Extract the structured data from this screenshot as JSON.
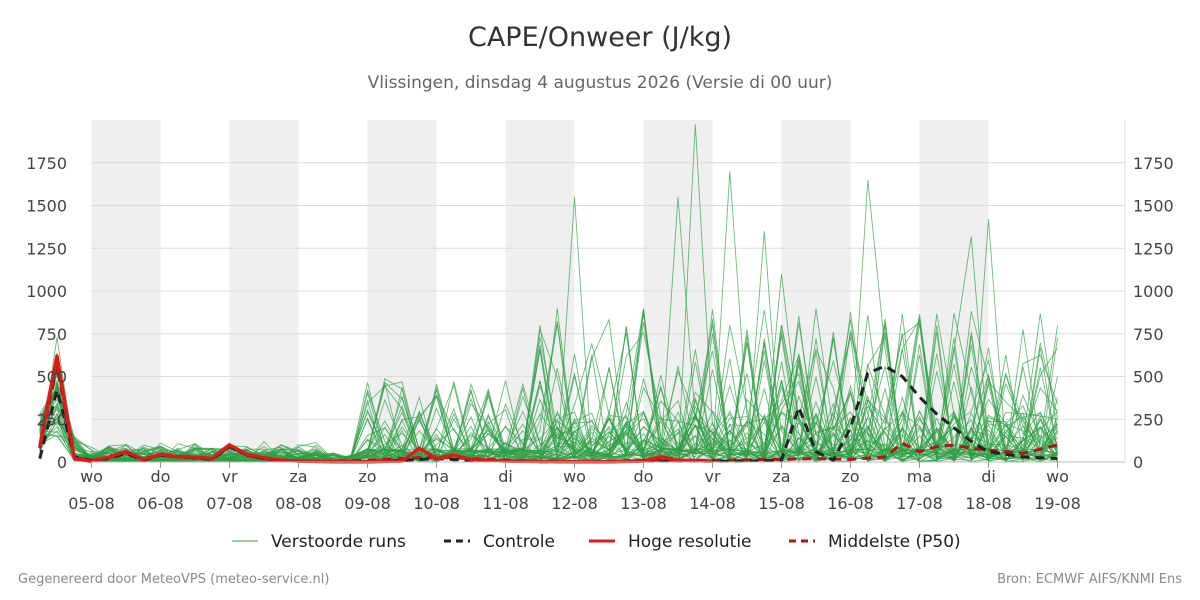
{
  "header": {
    "title": "CAPE/Onweer (J/kg)",
    "subtitle": "Vlissingen, dinsdag  4 augustus 2026 (Versie di 00 uur)"
  },
  "footer": {
    "left": "Gegenereerd door MeteoVPS (meteo-service.nl)",
    "right": "Bron: ECMWF AIFS/KNMI Ens"
  },
  "chart_data": {
    "type": "line",
    "title": "CAPE/Onweer (J/kg)",
    "ylim": [
      0,
      2000
    ],
    "yticks": [
      0,
      250,
      500,
      750,
      1000,
      1250,
      1500,
      1750
    ],
    "xlim": [
      0,
      15
    ],
    "grid": true,
    "legend_position": "bottom",
    "x_ticks": [
      {
        "x": 1,
        "day": "wo",
        "date": "05-08"
      },
      {
        "x": 2,
        "day": "do",
        "date": "06-08"
      },
      {
        "x": 3,
        "day": "vr",
        "date": "07-08"
      },
      {
        "x": 4,
        "day": "za",
        "date": "08-08"
      },
      {
        "x": 5,
        "day": "zo",
        "date": "09-08"
      },
      {
        "x": 6,
        "day": "ma",
        "date": "10-08"
      },
      {
        "x": 7,
        "day": "di",
        "date": "11-08"
      },
      {
        "x": 8,
        "day": "wo",
        "date": "12-08"
      },
      {
        "x": 9,
        "day": "do",
        "date": "13-08"
      },
      {
        "x": 10,
        "day": "vr",
        "date": "14-08"
      },
      {
        "x": 11,
        "day": "za",
        "date": "15-08"
      },
      {
        "x": 12,
        "day": "zo",
        "date": "16-08"
      },
      {
        "x": 13,
        "day": "ma",
        "date": "17-08"
      },
      {
        "x": 14,
        "day": "di",
        "date": "18-08"
      },
      {
        "x": 15,
        "day": "wo",
        "date": "19-08"
      }
    ],
    "shaded_bands": [
      [
        1,
        2
      ],
      [
        3,
        4
      ],
      [
        5,
        6
      ],
      [
        7,
        8
      ],
      [
        9,
        10
      ],
      [
        11,
        12
      ],
      [
        13,
        14
      ]
    ],
    "series": [
      {
        "name": "Controle",
        "color": "#222222",
        "style": "dashed",
        "x": [
          0.25,
          0.5,
          0.75,
          1.0,
          1.25,
          1.5,
          1.75,
          2.0,
          2.25,
          2.5,
          2.75,
          3.0,
          3.25,
          3.5,
          3.75,
          4.0,
          4.5,
          5.0,
          5.5,
          6.0,
          6.5,
          7.0,
          7.5,
          8.0,
          8.5,
          9.0,
          9.5,
          10.0,
          10.5,
          11.0,
          11.25,
          11.5,
          11.75,
          12.0,
          12.25,
          12.5,
          12.75,
          13.0,
          13.25,
          13.5,
          13.75,
          14.0,
          14.5,
          15.0
        ],
        "y": [
          20,
          420,
          30,
          10,
          20,
          50,
          10,
          40,
          30,
          25,
          15,
          90,
          40,
          20,
          10,
          5,
          2,
          2,
          10,
          20,
          10,
          5,
          2,
          2,
          2,
          5,
          5,
          5,
          5,
          10,
          320,
          60,
          10,
          200,
          520,
          560,
          500,
          380,
          280,
          200,
          120,
          60,
          30,
          20
        ]
      },
      {
        "name": "Hoge resolutie",
        "color": "#e01818",
        "style": "solid",
        "x": [
          0.25,
          0.5,
          0.75,
          1.0,
          1.25,
          1.5,
          1.75,
          2.0,
          2.25,
          2.5,
          2.75,
          3.0,
          3.25,
          3.5,
          3.75,
          4.0,
          4.5,
          5.0,
          5.5,
          5.75,
          6.0,
          6.25,
          6.5,
          7.0,
          7.5,
          8.0,
          8.5,
          9.0,
          9.25,
          9.5,
          10.0
        ],
        "y": [
          90,
          620,
          20,
          5,
          30,
          60,
          15,
          45,
          30,
          30,
          20,
          100,
          45,
          25,
          10,
          5,
          2,
          2,
          5,
          80,
          20,
          40,
          15,
          5,
          3,
          2,
          2,
          5,
          30,
          10,
          5
        ]
      },
      {
        "name": "Middelste (P50)",
        "color": "#aa1a1a",
        "style": "dashed",
        "x": [
          0.25,
          0.5,
          0.75,
          1.0,
          1.25,
          1.5,
          1.75,
          2.0,
          2.25,
          2.5,
          2.75,
          3.0,
          3.25,
          3.5,
          3.75,
          4.0,
          4.5,
          5.0,
          5.5,
          6.0,
          6.5,
          7.0,
          7.5,
          8.0,
          8.5,
          9.0,
          9.5,
          10.0,
          10.5,
          11.0,
          11.5,
          12.0,
          12.5,
          12.75,
          13.0,
          13.25,
          13.5,
          13.75,
          14.0,
          14.5,
          15.0
        ],
        "y": [
          80,
          560,
          25,
          10,
          25,
          55,
          12,
          40,
          28,
          25,
          18,
          90,
          40,
          20,
          10,
          5,
          5,
          10,
          20,
          30,
          20,
          10,
          5,
          5,
          5,
          10,
          10,
          10,
          12,
          15,
          20,
          15,
          30,
          110,
          60,
          90,
          100,
          80,
          70,
          50,
          100
        ]
      }
    ],
    "ensemble": {
      "name": "Verstoorde runs",
      "color": "#2e9e44",
      "peaks": [
        {
          "x": 0.5,
          "y": 730
        },
        {
          "x": 9.75,
          "y": 1975
        },
        {
          "x": 10.25,
          "y": 1700
        },
        {
          "x": 8.0,
          "y": 1550
        },
        {
          "x": 12.25,
          "y": 1650
        },
        {
          "x": 14.0,
          "y": 1420
        },
        {
          "x": 13.75,
          "y": 1320
        },
        {
          "x": 10.75,
          "y": 1350
        },
        {
          "x": 9.5,
          "y": 1550
        },
        {
          "x": 11.0,
          "y": 1100
        }
      ]
    },
    "legend": [
      {
        "name": "Verstoorde runs",
        "color": "#2e9e44",
        "style": "thin"
      },
      {
        "name": "Controle",
        "color": "#222222",
        "style": "dashed"
      },
      {
        "name": "Hoge resolutie",
        "color": "#e01818",
        "style": "solid"
      },
      {
        "name": "Middelste (P50)",
        "color": "#aa1a1a",
        "style": "dashed"
      }
    ]
  }
}
